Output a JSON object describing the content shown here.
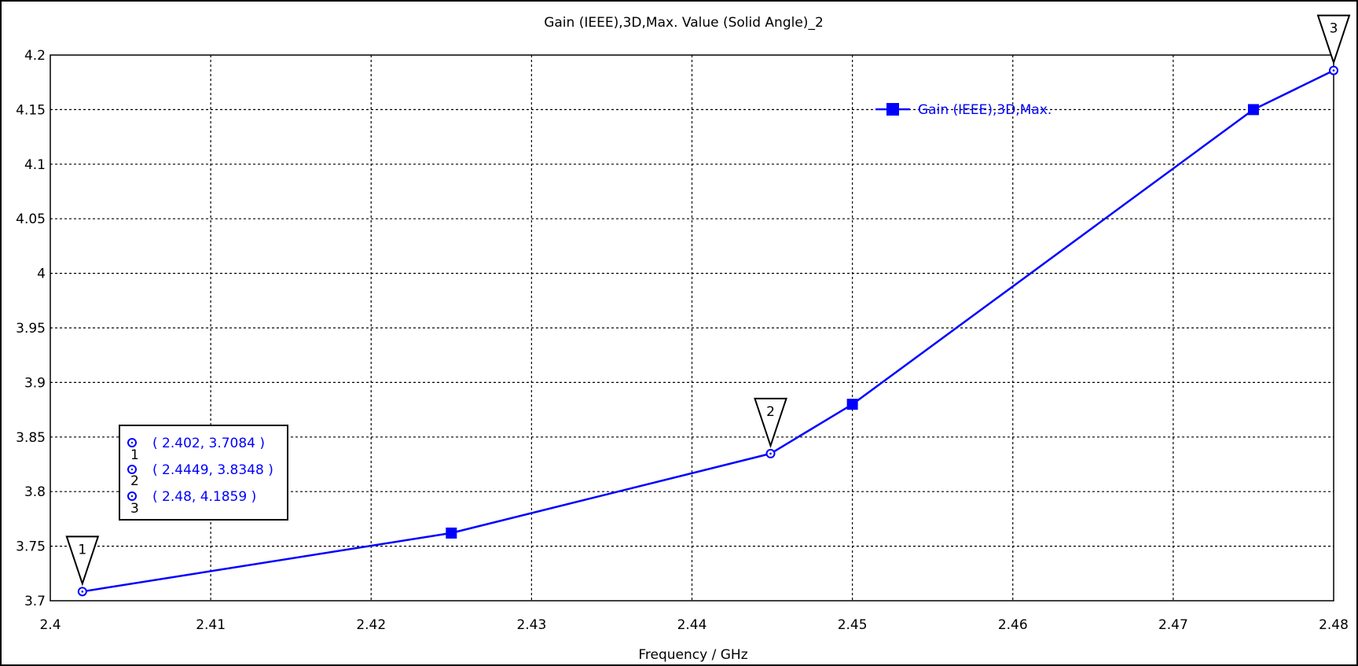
{
  "chart_data": {
    "type": "line",
    "title": "Gain (IEEE),3D,Max. Value (Solid Angle)_2",
    "xlabel": "Frequency / GHz",
    "ylabel": "",
    "xlim": [
      2.4,
      2.48
    ],
    "ylim": [
      3.7,
      4.2
    ],
    "x_ticks": [
      "2.4",
      "2.41",
      "2.42",
      "2.43",
      "2.44",
      "2.45",
      "2.46",
      "2.47",
      "2.48"
    ],
    "x_tick_values": [
      2.4,
      2.41,
      2.42,
      2.43,
      2.44,
      2.45,
      2.46,
      2.47,
      2.48
    ],
    "y_ticks": [
      "3.7",
      "3.75",
      "3.8",
      "3.85",
      "3.9",
      "3.95",
      "4",
      "4.05",
      "4.1",
      "4.15",
      "4.2"
    ],
    "y_tick_values": [
      3.7,
      3.75,
      3.8,
      3.85,
      3.9,
      3.95,
      4.0,
      4.05,
      4.1,
      4.15,
      4.2
    ],
    "grid": true,
    "legend_position": "top-right",
    "series": [
      {
        "name": "Gain (IEEE),3D,Max.",
        "color": "#0000ff",
        "x": [
          2.402,
          2.425,
          2.4449,
          2.45,
          2.475,
          2.48
        ],
        "y": [
          3.7084,
          3.762,
          3.8348,
          3.88,
          4.15,
          4.1859
        ]
      }
    ],
    "square_points": [
      {
        "x": 2.425,
        "y": 3.762
      },
      {
        "x": 2.45,
        "y": 3.88
      },
      {
        "x": 2.475,
        "y": 4.15
      }
    ],
    "markers": [
      {
        "id": "1",
        "x": 2.402,
        "y": 3.7084
      },
      {
        "id": "2",
        "x": 2.4449,
        "y": 3.8348
      },
      {
        "id": "3",
        "x": 2.48,
        "y": 4.1859
      }
    ],
    "marker_box": {
      "rows": [
        {
          "id": "1",
          "text": "( 2.402, 3.7084 )"
        },
        {
          "id": "2",
          "text": "( 2.4449, 3.8348 )"
        },
        {
          "id": "3",
          "text": "( 2.48, 4.1859 )"
        }
      ]
    }
  }
}
